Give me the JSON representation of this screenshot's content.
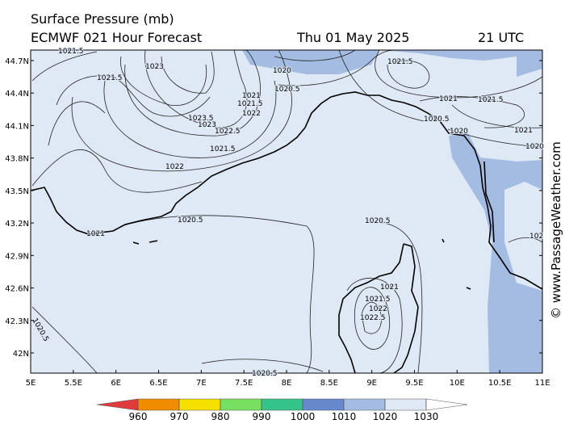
{
  "header": {
    "title": "Surface Pressure (mb)",
    "model": "ECMWF 021 Hour Forecast",
    "date": "Thu 01 May 2025",
    "time": "21 UTC"
  },
  "map": {
    "lat_ticks": [
      "44.7N",
      "44.4N",
      "44.1N",
      "43.8N",
      "43.5N",
      "43.2N",
      "42.9N",
      "42.6N",
      "42.3N",
      "42N"
    ],
    "lon_ticks": [
      "5E",
      "5.5E",
      "6E",
      "6.5E",
      "7E",
      "7.5E",
      "8E",
      "8.5E",
      "9E",
      "9.5E",
      "10E",
      "10.5E",
      "11E"
    ],
    "isobar_labels": [
      "1021.5",
      "1023",
      "1021.5",
      "1020",
      "1020.5",
      "1021",
      "1021.5",
      "1022",
      "1023.5",
      "1023",
      "1022.5",
      "1021.5",
      "1022",
      "1021.5",
      "1021",
      "1021.5",
      "1020.5",
      "1020",
      "1021",
      "1020",
      "1020.5",
      "1021",
      "1020.5",
      "102",
      "1021",
      "1021.5",
      "1022",
      "1022.5",
      "1020.5",
      "1020.5"
    ]
  },
  "colorbar": {
    "labels": [
      960,
      970,
      980,
      990,
      1000,
      1010,
      1020,
      1030
    ],
    "colors": [
      "#e03a3a",
      "#f08c00",
      "#f5e000",
      "#78e060",
      "#34c48a",
      "#6688cc",
      "#a4bce2",
      "#dfe8f5",
      "#ffffff"
    ]
  },
  "watermark": "© www.PassageWeather.com"
}
